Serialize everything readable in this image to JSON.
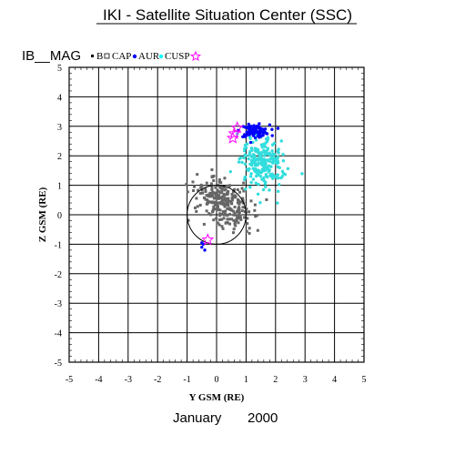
{
  "header": {
    "title": "IKI - Satellite Situation Center (SSC)",
    "subtitle": "IB__MAG"
  },
  "footer": {
    "date_label": "January",
    "year_label": "2000"
  },
  "legend": [
    {
      "symbol": "square",
      "label": "B",
      "color": "#000000"
    },
    {
      "symbol": "square-open",
      "label": "CAP",
      "color": "#000000"
    },
    {
      "symbol": "dot",
      "label": "AUR",
      "color": "#0000ff"
    },
    {
      "symbol": "dot",
      "label": "CUSP",
      "color": "#00ffff"
    },
    {
      "symbol": "star",
      "label": "",
      "color": "#ff00ff"
    }
  ],
  "colors": {
    "ib_mag": "#666666",
    "aur": "#0000ff",
    "cusp": "#33dddd",
    "star": "#ff00ff",
    "grid": "#000000"
  },
  "chart_data": {
    "type": "scatter",
    "xlabel": "Y GSM (RE)",
    "ylabel": "Z GSM (RE)",
    "xlim": [
      -5,
      5
    ],
    "ylim": [
      -5,
      5
    ],
    "xticks": [
      -5,
      -4,
      -3,
      -2,
      -1,
      0,
      1,
      2,
      3,
      4,
      5
    ],
    "yticks": [
      -5,
      -4,
      -3,
      -2,
      -1,
      0,
      1,
      2,
      3,
      4,
      5
    ],
    "grid": true,
    "legend_position": "top",
    "earth_circle": {
      "center": [
        0,
        0
      ],
      "radius": 1
    },
    "series": [
      {
        "name": "IB__MAG",
        "region": {
          "center": [
            0.25,
            0.4
          ],
          "spread": [
            0.75,
            1.25
          ],
          "count": 260,
          "angle": 55
        }
      },
      {
        "name": "CUSP",
        "region": {
          "center": [
            1.6,
            1.75
          ],
          "spread": [
            0.85,
            0.9
          ],
          "count": 230,
          "angle": 35
        }
      },
      {
        "name": "AUR",
        "region": {
          "center": [
            1.3,
            2.85
          ],
          "spread": [
            0.55,
            0.22
          ],
          "count": 90,
          "angle": 0
        },
        "extra": [
          {
            "x": -0.45,
            "y": -1.0
          },
          {
            "x": -0.5,
            "y": -1.1
          },
          {
            "x": -0.4,
            "y": -1.2
          },
          {
            "x": -0.5,
            "y": -0.95
          }
        ]
      },
      {
        "name": "Star",
        "points": [
          {
            "x": 0.6,
            "y": 2.75
          },
          {
            "x": 0.55,
            "y": 2.6
          },
          {
            "x": 0.7,
            "y": 2.95
          },
          {
            "x": -0.3,
            "y": -0.85
          }
        ]
      }
    ]
  }
}
